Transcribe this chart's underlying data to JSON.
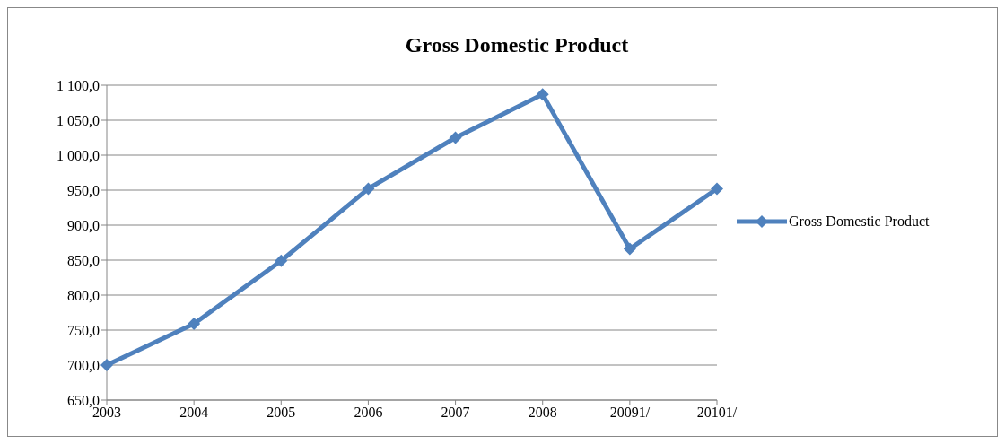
{
  "chart_data": {
    "type": "line",
    "title": "Gross Domestic Product",
    "categories": [
      "2003",
      "2004",
      "2005",
      "2006",
      "2007",
      "2008",
      "20091/",
      "20101/"
    ],
    "series": [
      {
        "name": "Gross Domestic Product",
        "color": "#4f81bd",
        "values": [
          700,
          759,
          849,
          952,
          1025,
          1087,
          866,
          952
        ]
      }
    ],
    "ylim": [
      650,
      1100
    ],
    "yticks": [
      {
        "value": 650,
        "label": "650,0"
      },
      {
        "value": 700,
        "label": "700,0"
      },
      {
        "value": 750,
        "label": "750,0"
      },
      {
        "value": 800,
        "label": "800,0"
      },
      {
        "value": 850,
        "label": "850,0"
      },
      {
        "value": 900,
        "label": "900,0"
      },
      {
        "value": 950,
        "label": "950,0"
      },
      {
        "value": 1000,
        "label": "1 000,0"
      },
      {
        "value": 1050,
        "label": "1 050,0"
      },
      {
        "value": 1100,
        "label": "1 100,0"
      }
    ],
    "grid": "y",
    "legend": "right",
    "marker": "diamond",
    "line_style": "solid"
  }
}
